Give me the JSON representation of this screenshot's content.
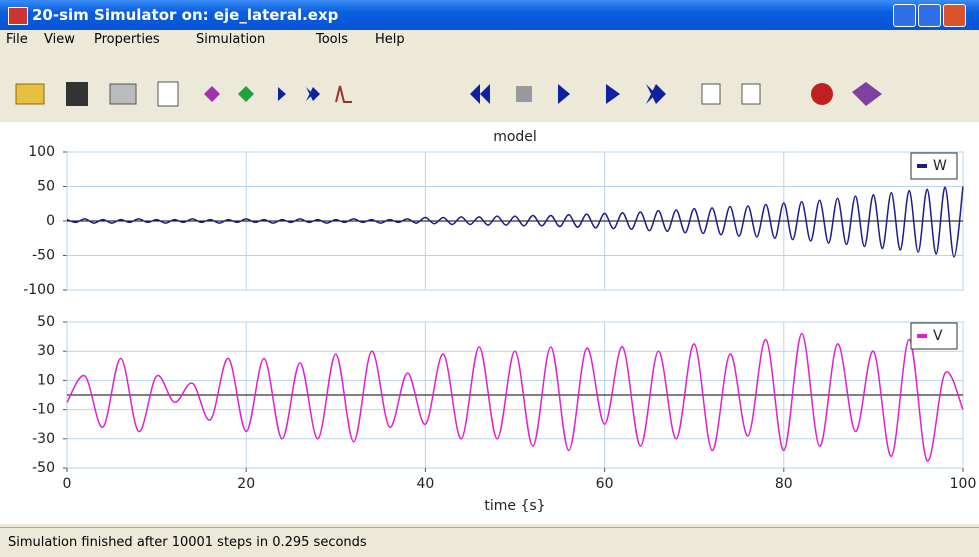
{
  "window": {
    "title": "20-sim Simulator on: eje_lateral.exp",
    "menu": [
      "File",
      "View",
      "Properties",
      "Simulation",
      "Tools",
      "Help"
    ],
    "status": "Simulation finished after 10001 steps in 0.295 seconds"
  },
  "chart_data": [
    {
      "type": "line",
      "title": "model",
      "x": [
        0,
        1,
        2,
        3,
        4,
        5,
        6,
        7,
        8,
        9,
        10,
        11,
        12,
        13,
        14,
        15,
        16,
        17,
        18,
        19,
        20,
        21,
        22,
        23,
        24,
        25,
        26,
        27,
        28,
        29,
        30,
        31,
        32,
        33,
        34,
        35,
        36,
        37,
        38,
        39,
        40,
        41,
        42,
        43,
        44,
        45,
        46,
        47,
        48,
        49,
        50,
        51,
        52,
        53,
        54,
        55,
        56,
        57,
        58,
        59,
        60,
        61,
        62,
        63,
        64,
        65,
        66,
        67,
        68,
        69,
        70,
        71,
        72,
        73,
        74,
        75,
        76,
        77,
        78,
        79,
        80,
        81,
        82,
        83,
        84,
        85,
        86,
        87,
        88,
        89,
        90,
        91,
        92,
        93,
        94,
        95,
        96,
        97,
        98,
        99,
        100
      ],
      "series": [
        {
          "name": "W",
          "color": "#1c1c8c",
          "values": [
            2,
            -2,
            3,
            -3,
            2,
            -3,
            2,
            -2,
            3,
            -2,
            2,
            -3,
            2,
            -2,
            3,
            -2,
            2,
            -3,
            2,
            -2,
            3,
            -2,
            2,
            -3,
            2,
            -2,
            3,
            -2,
            2,
            -3,
            2,
            -2,
            3,
            -2,
            2,
            -3,
            2,
            -2,
            3,
            -3,
            5,
            -4,
            5,
            -5,
            6,
            -5,
            6,
            -6,
            7,
            -6,
            7,
            -7,
            8,
            -7,
            8,
            -8,
            9,
            -9,
            10,
            -10,
            11,
            -11,
            12,
            -12,
            13,
            -14,
            15,
            -15,
            16,
            -17,
            18,
            -18,
            19,
            -20,
            21,
            -22,
            22,
            -23,
            24,
            -25,
            26,
            -27,
            28,
            -29,
            30,
            -32,
            33,
            -34,
            36,
            -37,
            38,
            -40,
            41,
            -42,
            44,
            -45,
            46,
            -48,
            49,
            -52,
            50
          ]
        }
      ],
      "xlim": [
        0,
        100
      ],
      "ylim": [
        -100,
        100
      ],
      "yticks": [
        100,
        50,
        0,
        -50,
        -100
      ],
      "grid": true,
      "legend": "upper right"
    },
    {
      "type": "line",
      "xlabel": "time {s}",
      "x": [
        0,
        2,
        4,
        6,
        8,
        10,
        12,
        14,
        16,
        18,
        20,
        22,
        24,
        26,
        28,
        30,
        32,
        34,
        36,
        38,
        40,
        42,
        44,
        46,
        48,
        50,
        52,
        54,
        56,
        58,
        60,
        62,
        64,
        66,
        68,
        70,
        72,
        74,
        76,
        78,
        80,
        82,
        84,
        86,
        88,
        90,
        92,
        94,
        96,
        98,
        100
      ],
      "series": [
        {
          "name": "V",
          "color": "#e020d0",
          "values": [
            -5,
            13,
            -22,
            25,
            -25,
            13,
            -5,
            8,
            -17,
            25,
            -25,
            25,
            -30,
            22,
            -30,
            28,
            -32,
            30,
            -22,
            15,
            -20,
            28,
            -30,
            33,
            -30,
            30,
            -35,
            33,
            -38,
            32,
            -20,
            33,
            -35,
            30,
            -30,
            35,
            -38,
            28,
            -28,
            38,
            -38,
            42,
            -35,
            35,
            -25,
            30,
            -42,
            38,
            -45,
            15,
            -10
          ]
        }
      ],
      "xlim": [
        0,
        100
      ],
      "ylim": [
        -50,
        50
      ],
      "xticks": [
        0,
        20,
        40,
        60,
        80,
        100
      ],
      "yticks": [
        50,
        30,
        10,
        -10,
        -30,
        -50
      ],
      "grid": true,
      "legend": "upper right"
    }
  ]
}
